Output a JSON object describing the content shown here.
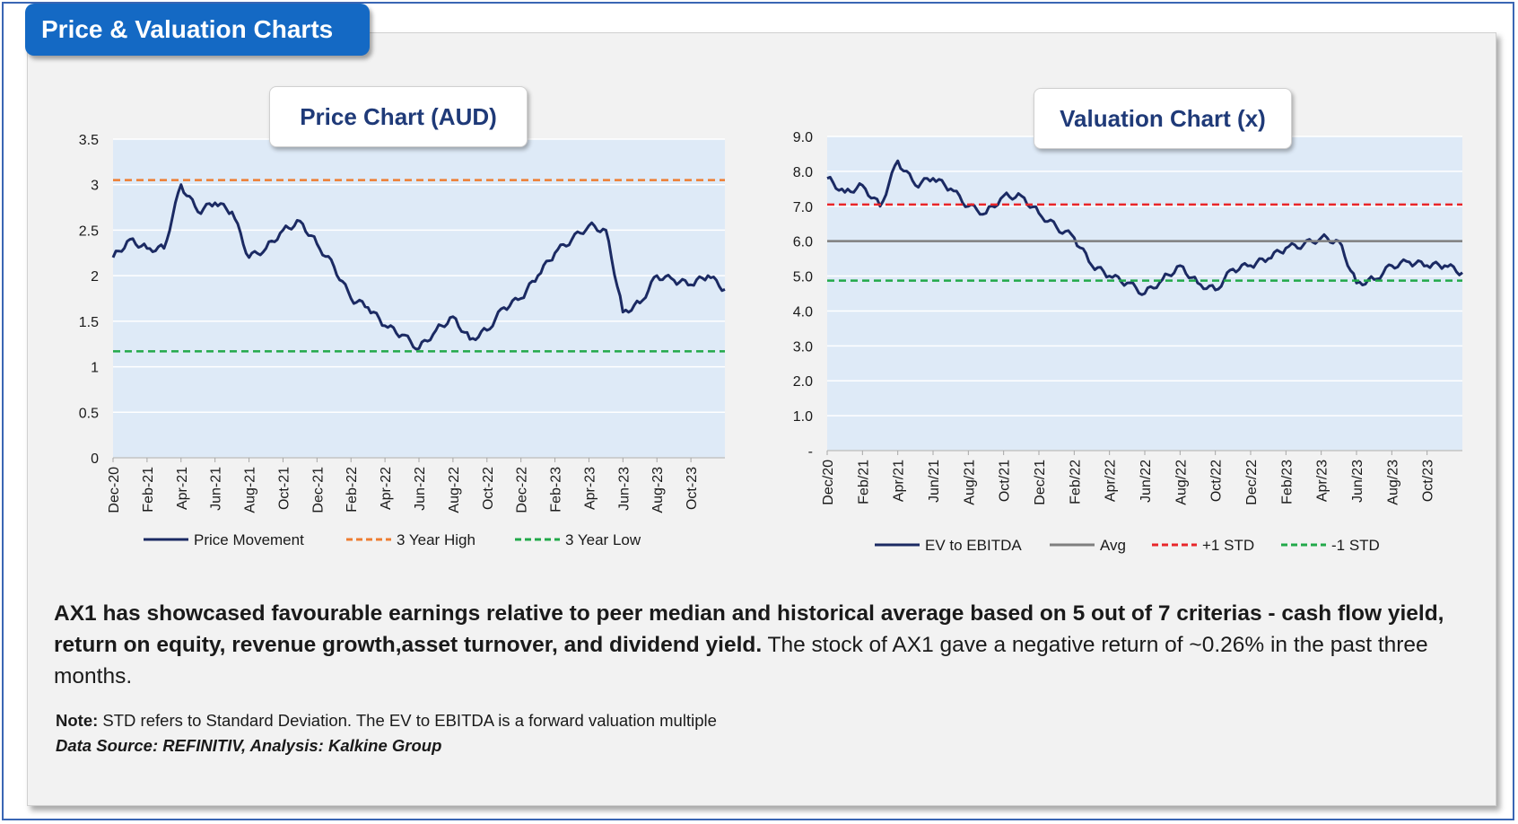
{
  "header": {
    "title": "Price & Valuation Charts"
  },
  "colors": {
    "header_bg": "#1469c4",
    "plot_bg": "#deeaf7",
    "series_line": "#1b2a63",
    "high_line": "#ee7d31",
    "low_line": "#22a94a",
    "avg_line": "#7f7f7f",
    "plus_std": "#e8262a",
    "minus_std": "#22a94a"
  },
  "chart_data": [
    {
      "type": "line",
      "title": "Price Chart (AUD)",
      "ylim": [
        0,
        3.5
      ],
      "y_ticks": [
        "3.5",
        "3",
        "2.5",
        "2",
        "1.5",
        "1",
        "0.5",
        "0"
      ],
      "x_ticks": [
        "Dec-20",
        "Feb-21",
        "Apr-21",
        "Jun-21",
        "Aug-21",
        "Oct-21",
        "Dec-21",
        "Feb-22",
        "Apr-22",
        "Jun-22",
        "Aug-22",
        "Oct-22",
        "Dec-22",
        "Feb-23",
        "Apr-23",
        "Jun-23",
        "Aug-23",
        "Oct-23"
      ],
      "grid": true,
      "legend_position": "bottom",
      "series": [
        {
          "name": "Price Movement",
          "style": "solid",
          "x": [
            "2020-12",
            "2021-01",
            "2021-02",
            "2021-03",
            "2021-04",
            "2021-05",
            "2021-06",
            "2021-07",
            "2021-08",
            "2021-09",
            "2021-10",
            "2021-11",
            "2021-12",
            "2022-01",
            "2022-02",
            "2022-03",
            "2022-04",
            "2022-05",
            "2022-06",
            "2022-07",
            "2022-08",
            "2022-09",
            "2022-10",
            "2022-11",
            "2022-12",
            "2023-01",
            "2023-02",
            "2023-03",
            "2023-04",
            "2023-05",
            "2023-06",
            "2023-07",
            "2023-08",
            "2023-09",
            "2023-10",
            "2023-11",
            "2023-12"
          ],
          "values": [
            2.2,
            2.4,
            2.3,
            2.3,
            3.0,
            2.7,
            2.8,
            2.7,
            2.2,
            2.3,
            2.5,
            2.6,
            2.35,
            2.1,
            1.75,
            1.65,
            1.45,
            1.35,
            1.2,
            1.4,
            1.55,
            1.3,
            1.4,
            1.65,
            1.75,
            2.0,
            2.25,
            2.4,
            2.55,
            2.5,
            1.6,
            1.7,
            2.0,
            1.95,
            1.9,
            2.0,
            1.85
          ]
        },
        {
          "name": "3 Year High",
          "style": "dashed",
          "values": [
            3.05
          ]
        },
        {
          "name": "3 Year Low",
          "style": "dashed",
          "values": [
            1.17
          ]
        }
      ]
    },
    {
      "type": "line",
      "title": "Valuation Chart (x)",
      "ylim": [
        0,
        9
      ],
      "y_ticks": [
        "9.0",
        "8.0",
        "7.0",
        "6.0",
        "5.0",
        "4.0",
        "3.0",
        "2.0",
        "1.0",
        "-"
      ],
      "x_ticks": [
        "Dec/20",
        "Feb/21",
        "Apr/21",
        "Jun/21",
        "Aug/21",
        "Oct/21",
        "Dec/21",
        "Feb/22",
        "Apr/22",
        "Jun/22",
        "Aug/22",
        "Oct/22",
        "Dec/22",
        "Feb/23",
        "Apr/23",
        "Jun/23",
        "Aug/23",
        "Oct/23"
      ],
      "grid": true,
      "legend_position": "bottom",
      "series": [
        {
          "name": "EV to EBITDA",
          "style": "solid",
          "x": [
            "2020-12",
            "2021-01",
            "2021-02",
            "2021-03",
            "2021-04",
            "2021-05",
            "2021-06",
            "2021-07",
            "2021-08",
            "2021-09",
            "2021-10",
            "2021-11",
            "2021-12",
            "2022-01",
            "2022-02",
            "2022-03",
            "2022-04",
            "2022-05",
            "2022-06",
            "2022-07",
            "2022-08",
            "2022-09",
            "2022-10",
            "2022-11",
            "2022-12",
            "2023-01",
            "2023-02",
            "2023-03",
            "2023-04",
            "2023-05",
            "2023-06",
            "2023-07",
            "2023-08",
            "2023-09",
            "2023-10",
            "2023-11",
            "2023-12"
          ],
          "values": [
            7.8,
            7.4,
            7.6,
            7.0,
            8.3,
            7.6,
            7.8,
            7.5,
            7.0,
            6.8,
            7.3,
            7.3,
            6.8,
            6.4,
            6.1,
            5.3,
            5.0,
            4.8,
            4.5,
            4.9,
            5.3,
            4.8,
            4.6,
            5.2,
            5.3,
            5.5,
            5.8,
            5.9,
            6.1,
            6.0,
            4.8,
            4.9,
            5.3,
            5.4,
            5.3,
            5.3,
            5.1
          ]
        },
        {
          "name": "Avg",
          "style": "solid",
          "values": [
            6.0
          ]
        },
        {
          "name": "+1 STD",
          "style": "dashed",
          "values": [
            7.05
          ]
        },
        {
          "name": "-1 STD",
          "style": "dashed",
          "values": [
            4.87
          ]
        }
      ]
    }
  ],
  "summary": {
    "bold_text": "AX1 has showcased favourable earnings relative to peer median and historical average based on 5 out of 7 criterias - cash flow yield, return on equity, revenue growth,asset turnover, and dividend yield.",
    "regular_text": " The stock of AX1 gave a negative return of ~0.26% in the past three months."
  },
  "note": {
    "label": "Note:",
    "text": " STD refers to Standard Deviation. The EV to EBITDA is a forward valuation multiple"
  },
  "source": {
    "text": "Data Source: REFINITIV, Analysis: Kalkine Group"
  }
}
